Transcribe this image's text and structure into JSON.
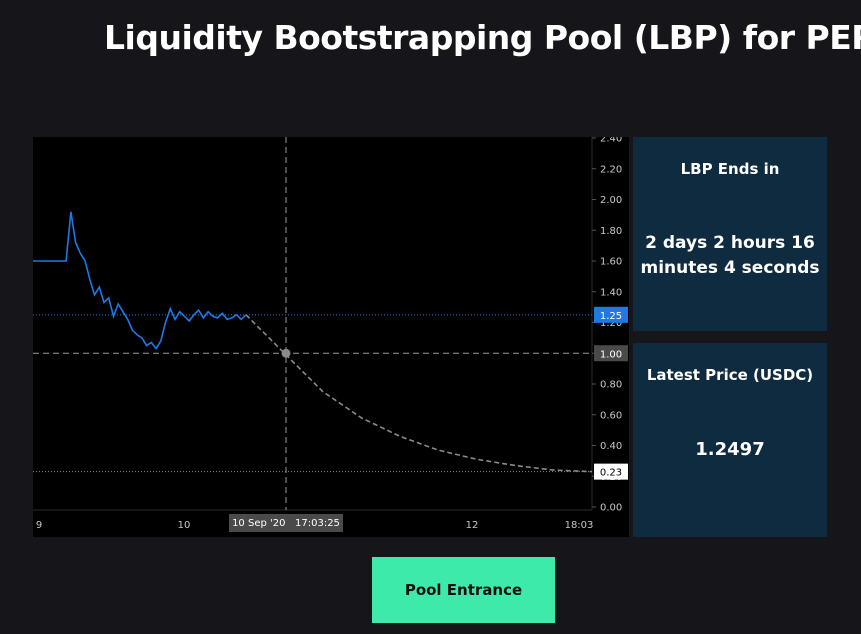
{
  "header": {
    "title": "Liquidity Bootstrapping Pool (LBP) for PERP"
  },
  "countdown": {
    "label": "LBP Ends in",
    "value": "2 days 2 hours 16 minutes 4 seconds"
  },
  "price": {
    "label": "Latest Price (USDC)",
    "value": "1.2497"
  },
  "pool_button": {
    "label": "Pool Entrance"
  },
  "colors": {
    "background": "#16161a",
    "chart_bg": "#000000",
    "panel_bg": "#0f2b3f",
    "price_line": "#1e78e6",
    "projection_line": "#8a8a8a",
    "button": "#3eeaa9"
  },
  "chart_data": {
    "type": "line",
    "ylim": [
      0.0,
      2.4
    ],
    "y_ticks": [
      "0.00",
      "0.20",
      "0.40",
      "0.60",
      "0.80",
      "1.00",
      "1.20",
      "1.40",
      "1.60",
      "1.80",
      "2.00",
      "2.20",
      "2.40"
    ],
    "x_ticks": [
      "9",
      "10",
      "12",
      "18:03"
    ],
    "crosshair": {
      "x_label": "10 Sep '20   17:03:25",
      "y_label": "1.00"
    },
    "price_label": "1.25",
    "end_label": "0.23",
    "series": [
      {
        "values": [
          1.6,
          1.6,
          1.6,
          1.6,
          1.6,
          1.6,
          1.6,
          1.6,
          1.92,
          1.72,
          1.65,
          1.6,
          1.48,
          1.38,
          1.43,
          1.33,
          1.36,
          1.24,
          1.32,
          1.27,
          1.22,
          1.15,
          1.12,
          1.1,
          1.05,
          1.07,
          1.03,
          1.08,
          1.2,
          1.29,
          1.22,
          1.27,
          1.24,
          1.21,
          1.25,
          1.28,
          1.23,
          1.27,
          1.24,
          1.23,
          1.26,
          1.22,
          1.23,
          1.25,
          1.22,
          1.25
        ]
      },
      {
        "values": [
          1.25,
          1.0,
          0.75,
          0.58,
          0.46,
          0.37,
          0.31,
          0.27,
          0.24,
          0.23
        ]
      }
    ]
  }
}
